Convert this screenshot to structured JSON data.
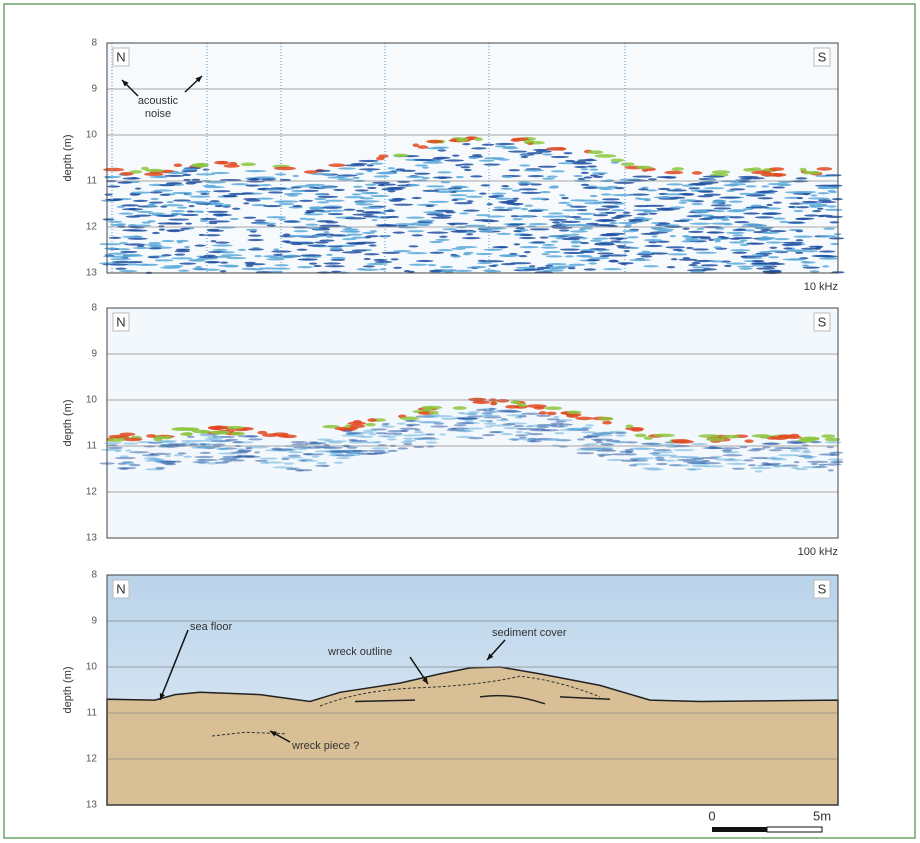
{
  "panels": [
    {
      "corner_labels": [
        "N",
        "S"
      ],
      "y_label": "depth (m)",
      "y_ticks": [
        8,
        9,
        10,
        11,
        12,
        13
      ],
      "frequency": "10 kHz",
      "annotations": [
        "acoustic",
        "noise"
      ]
    },
    {
      "corner_labels": [
        "N",
        "S"
      ],
      "y_label": "depth (m)",
      "y_ticks": [
        8,
        9,
        10,
        11,
        12,
        13
      ],
      "frequency": "100 kHz",
      "annotations": []
    },
    {
      "corner_labels": [
        "N",
        "S"
      ],
      "y_label": "depth (m)",
      "y_ticks": [
        8,
        9,
        10,
        11,
        12,
        13
      ],
      "annotations": [
        "sea floor",
        "wreck outline",
        "sediment cover",
        "wreck piece ?"
      ]
    }
  ],
  "scale_bar": {
    "labels": [
      "0",
      "5m"
    ]
  }
}
